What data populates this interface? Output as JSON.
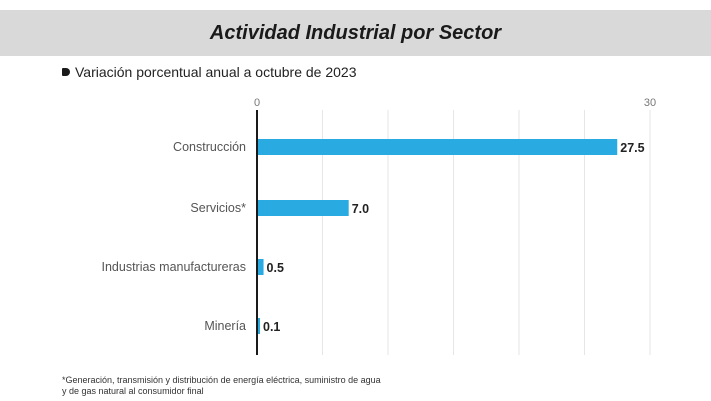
{
  "header": {
    "title": "Actividad Industrial por Sector"
  },
  "subtitle": {
    "text": "Variación porcentual anual a octubre de 2023",
    "icon": "bullet-icon"
  },
  "footnote": {
    "line1": "*Generación, transmisión y distribución de energía eléctrica, suministro de agua",
    "line2": "y de gas natural al consumidor final"
  },
  "colors": {
    "bar": "#29ABE2",
    "axis": "#1a1a1a",
    "grid": "#e6e6e6",
    "title_band": "#d9d9d9"
  },
  "chart_data": {
    "type": "bar",
    "orientation": "horizontal",
    "title": "Actividad Industrial por Sector",
    "subtitle": "Variación porcentual anual a octubre de 2023",
    "categories": [
      "Construcción",
      "Servicios*",
      "Industrias manufactureras",
      "Minería"
    ],
    "values": [
      27.5,
      7.0,
      0.5,
      0.1
    ],
    "value_labels": [
      "27.5",
      "7.0",
      "0.5",
      "0.1"
    ],
    "xlim": [
      0,
      30
    ],
    "ticks": [
      {
        "value": 0,
        "label": "0"
      },
      {
        "value": 30,
        "label": "30"
      }
    ],
    "gridlines": [
      0,
      5,
      10,
      15,
      20,
      25,
      30
    ],
    "grid": true,
    "legend": "none"
  }
}
